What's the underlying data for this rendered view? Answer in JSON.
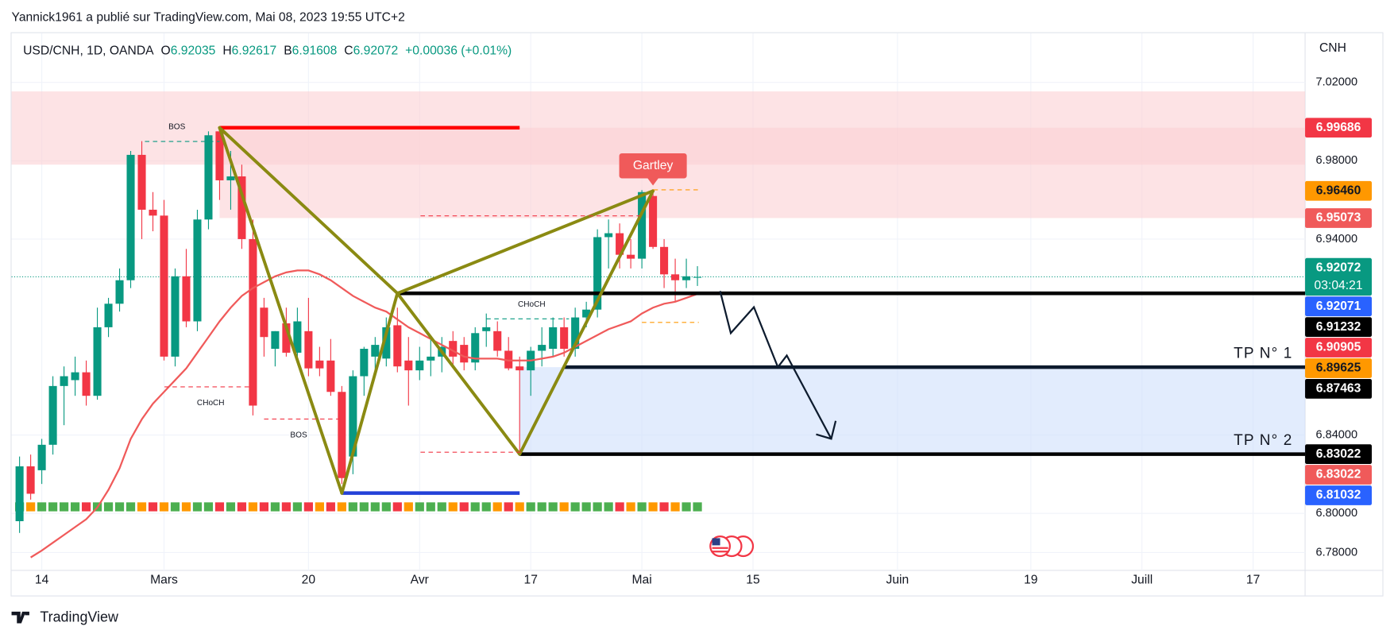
{
  "publisher": "Yannick1961 a publié sur TradingView.com, Mai 08, 2023 19:55 UTC+2",
  "brand": "TradingView",
  "chart_data": {
    "type": "candlestick",
    "symbol": "USD/CNH, 1D, OANDA",
    "open_label": "O",
    "high_label": "H",
    "low_label": "B",
    "close_label": "C",
    "change": "+0.00036 (+0.01%)",
    "currency": "CNH",
    "up_color": "#089981",
    "down_color": "#f23645",
    "open": [
      6.796,
      6.824,
      6.822,
      6.835,
      6.865,
      6.868,
      6.872,
      6.86,
      6.895,
      6.907,
      6.919,
      6.983,
      6.955,
      6.952,
      6.88,
      6.921,
      6.898,
      6.95,
      6.995,
      6.97,
      6.972,
      6.94,
      6.905,
      6.884,
      6.897,
      6.882,
      6.893,
      6.878,
      6.878,
      6.862,
      6.829,
      6.87,
      6.88,
      6.879,
      6.896,
      6.878,
      6.873,
      6.878,
      6.88,
      6.888,
      6.886,
      6.877,
      6.893,
      6.893,
      6.883,
      6.875,
      6.873,
      6.883,
      6.884,
      6.895,
      6.884,
      6.9,
      6.904,
      6.941,
      6.943,
      6.932,
      6.93,
      6.962,
      6.936,
      6.922,
      6.919,
      6.92035
    ],
    "high": [
      6.829,
      6.83,
      6.838,
      6.87,
      6.875,
      6.88,
      6.878,
      6.905,
      6.91,
      6.925,
      6.985,
      6.99,
      6.964,
      6.96,
      6.925,
      6.935,
      6.955,
      6.995,
      6.997,
      6.985,
      6.978,
      6.95,
      6.91,
      6.893,
      6.905,
      6.905,
      6.91,
      6.885,
      6.889,
      6.865,
      6.873,
      6.885,
      6.89,
      6.9,
      6.905,
      6.89,
      6.885,
      6.89,
      6.89,
      6.893,
      6.89,
      6.895,
      6.902,
      6.898,
      6.89,
      6.88,
      6.885,
      6.895,
      6.9,
      6.9,
      6.905,
      6.908,
      6.945,
      6.95,
      6.948,
      6.94,
      6.965,
      6.964,
      6.94,
      6.93,
      6.93,
      6.92617
    ],
    "low": [
      6.79,
      6.807,
      6.815,
      6.83,
      6.845,
      6.86,
      6.855,
      6.858,
      6.89,
      6.903,
      6.915,
      6.94,
      6.944,
      6.878,
      6.875,
      6.895,
      6.893,
      6.945,
      6.96,
      6.955,
      6.935,
      6.85,
      6.88,
      6.875,
      6.88,
      6.878,
      6.87,
      6.87,
      6.86,
      6.815,
      6.82,
      6.86,
      6.87,
      6.875,
      6.872,
      6.855,
      6.868,
      6.87,
      6.872,
      6.875,
      6.873,
      6.873,
      6.885,
      6.88,
      6.873,
      6.831,
      6.86,
      6.875,
      6.88,
      6.88,
      6.88,
      6.895,
      6.9,
      6.925,
      6.925,
      6.925,
      6.925,
      6.935,
      6.915,
      6.908,
      6.915,
      6.91608
    ],
    "close": [
      6.824,
      6.81,
      6.835,
      6.865,
      6.87,
      6.872,
      6.86,
      6.895,
      6.907,
      6.919,
      6.983,
      6.955,
      6.952,
      6.88,
      6.921,
      6.898,
      6.95,
      6.993,
      6.97,
      6.972,
      6.94,
      6.855,
      6.89,
      6.893,
      6.882,
      6.898,
      6.874,
      6.874,
      6.862,
      6.818,
      6.87,
      6.884,
      6.886,
      6.895,
      6.875,
      6.873,
      6.878,
      6.88,
      6.885,
      6.88,
      6.877,
      6.892,
      6.895,
      6.883,
      6.874,
      6.873,
      6.883,
      6.886,
      6.895,
      6.884,
      6.9,
      6.904,
      6.941,
      6.943,
      6.932,
      6.93,
      6.964,
      6.936,
      6.922,
      6.919,
      6.921,
      6.92072
    ],
    "ma": {
      "color": "#f05a5a",
      "values": [
        null,
        6.7775,
        6.781,
        6.785,
        6.789,
        6.793,
        6.797,
        6.803,
        6.812,
        6.823,
        6.838,
        6.848,
        6.856,
        6.862,
        6.868,
        6.874,
        6.882,
        6.89,
        6.898,
        6.905,
        6.911,
        6.915,
        6.918,
        6.921,
        6.923,
        6.924,
        6.924,
        6.922,
        6.919,
        6.915,
        6.911,
        6.908,
        6.905,
        6.903,
        6.899,
        6.895,
        6.892,
        6.889,
        6.886,
        6.883,
        6.88,
        6.879,
        6.879,
        6.879,
        6.878,
        6.878,
        6.878,
        6.879,
        6.88,
        6.882,
        6.885,
        6.888,
        6.891,
        6.894,
        6.896,
        6.898,
        6.902,
        6.905,
        6.907,
        6.908,
        6.91,
        6.912
      ]
    },
    "xlim": [
      -0.72,
      115.68
    ],
    "ylim": [
      6.77086,
      7.04514
    ],
    "xticks": [
      {
        "value": 2,
        "label": "14"
      },
      {
        "value": 13,
        "label": "Mars"
      },
      {
        "value": 26,
        "label": "20"
      },
      {
        "value": 36,
        "label": "Avr"
      },
      {
        "value": 46,
        "label": "17"
      },
      {
        "value": 56,
        "label": "Mai"
      },
      {
        "value": 66,
        "label": "15"
      },
      {
        "value": 79,
        "label": "Juin"
      },
      {
        "value": 91,
        "label": "19"
      },
      {
        "value": 101,
        "label": "Juill"
      },
      {
        "value": 111,
        "label": "17"
      }
    ],
    "yticks": [
      {
        "value": 7.02,
        "label": "7.02000"
      },
      {
        "value": 6.98,
        "label": "6.98000"
      },
      {
        "value": 6.94,
        "label": "6.94000"
      },
      {
        "value": 6.84,
        "label": "6.84000"
      },
      {
        "value": 6.8,
        "label": "6.80000"
      },
      {
        "value": 6.78,
        "label": "6.78000"
      }
    ],
    "grid": true,
    "zones": [
      {
        "from": 6.978,
        "to": 7.0154,
        "color": "#fbd0d3"
      },
      {
        "from": 6.95073,
        "to": 6.99686,
        "start": 18,
        "color": "#fbd0d3"
      },
      {
        "from": 6.83022,
        "to": 6.87463,
        "start": 45,
        "color": "#cfe0fb"
      }
    ],
    "levels": [
      {
        "value": 6.99686,
        "start": 18,
        "end": 45,
        "color": "#ff0000"
      },
      {
        "value": 6.81032,
        "start": 29,
        "end": 45,
        "color": "#2341d8"
      },
      {
        "value": 6.91232,
        "start": 34,
        "color": "#000000"
      },
      {
        "value": 6.87463,
        "start": 49,
        "color": "#0d1b2e",
        "label": "TP N° 1"
      },
      {
        "value": 6.83022,
        "start": 45,
        "color": "#000000",
        "label": "TP N° 2"
      }
    ],
    "pattern": {
      "name": "Gartley",
      "color": "#8a8a12",
      "label_color": "#f05a5a",
      "x": [
        18,
        29,
        34,
        45,
        57
      ],
      "y": [
        6.99686,
        6.81032,
        6.91232,
        6.83022,
        6.9646
      ]
    },
    "badges": [
      {
        "value": 6.99686,
        "label": "6.99686",
        "color": "#f23645"
      },
      {
        "value": 6.9646,
        "label": "6.96460",
        "color": "#ff9800"
      },
      {
        "value": 6.95073,
        "label": "6.95073",
        "color": "#f05a5a"
      },
      {
        "value": 6.92072,
        "label": "6.92072",
        "color": "#089981",
        "countdown": "03:04:21"
      },
      {
        "value": 6.92071,
        "label": "6.92071",
        "color": "#2962ff"
      },
      {
        "value": 6.91232,
        "label": "6.91232",
        "color": "#000000"
      },
      {
        "value": 6.90905,
        "label": "6.90905",
        "color": "#f23645"
      },
      {
        "value": 6.89625,
        "label": "6.89625",
        "color": "#ff9800"
      },
      {
        "value": 6.87463,
        "label": "6.87463",
        "color": "#000000"
      },
      {
        "value": 6.83022,
        "label": "6.83022",
        "color": "#000000"
      },
      {
        "value": 6.83022,
        "label": "6.83022",
        "color": "#f05a5a"
      },
      {
        "value": 6.81032,
        "label": "6.81032",
        "color": "#2962ff"
      }
    ],
    "annotations": [
      {
        "text": "BOS",
        "color": "#089981"
      },
      {
        "text": "CHoCH",
        "color": "#089981"
      },
      {
        "text": "CHoCH",
        "color": "#f23645"
      },
      {
        "text": "BOS",
        "color": "#f23645"
      }
    ]
  }
}
